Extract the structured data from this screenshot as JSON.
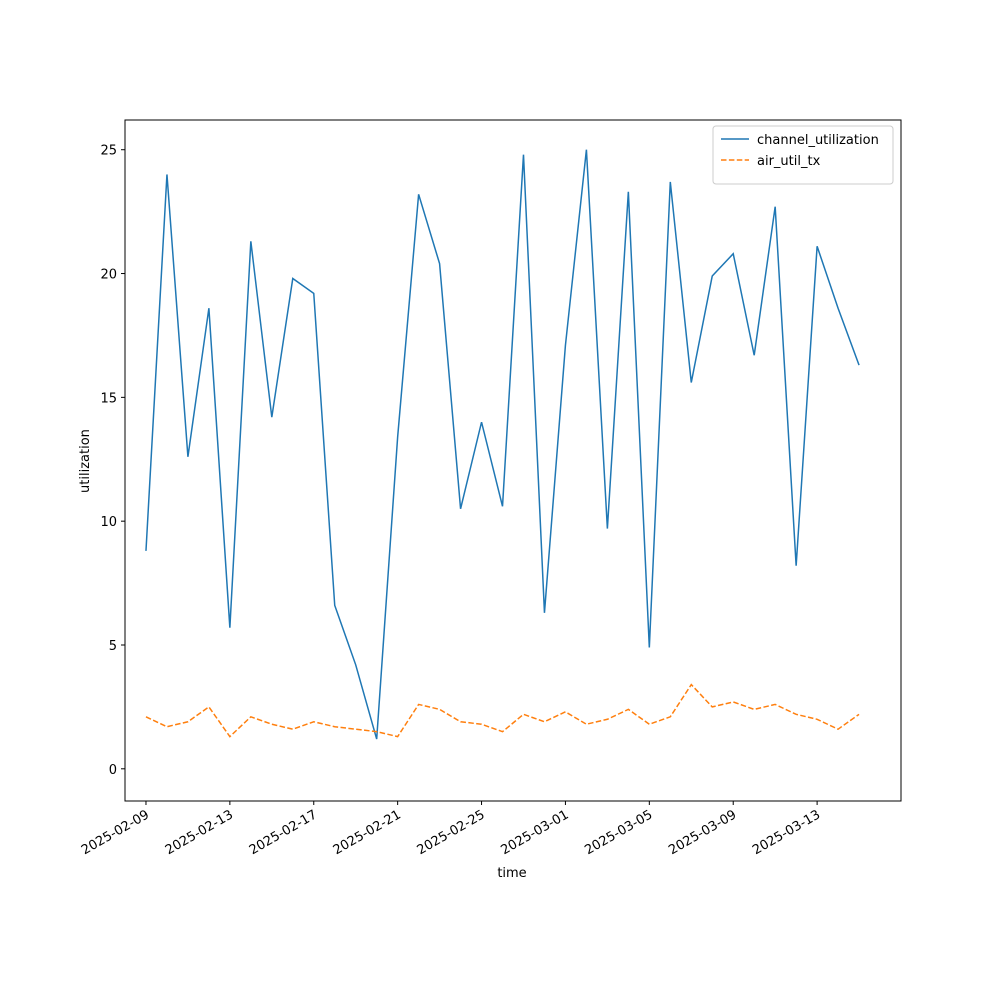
{
  "chart_data": {
    "type": "line",
    "xlabel": "time",
    "ylabel": "utilization",
    "x": [
      "2025-02-09",
      "2025-02-10",
      "2025-02-11",
      "2025-02-12",
      "2025-02-13",
      "2025-02-14",
      "2025-02-15",
      "2025-02-16",
      "2025-02-17",
      "2025-02-18",
      "2025-02-19",
      "2025-02-20",
      "2025-02-21",
      "2025-02-22",
      "2025-02-23",
      "2025-02-24",
      "2025-02-25",
      "2025-02-26",
      "2025-02-27",
      "2025-02-28",
      "2025-03-01",
      "2025-03-02",
      "2025-03-03",
      "2025-03-04",
      "2025-03-05",
      "2025-03-06",
      "2025-03-07",
      "2025-03-08",
      "2025-03-09",
      "2025-03-10",
      "2025-03-11",
      "2025-03-12",
      "2025-03-13",
      "2025-03-14",
      "2025-03-15"
    ],
    "series": [
      {
        "name": "channel_utilization",
        "color": "#1f77b4",
        "dash": false,
        "values": [
          8.8,
          24,
          12.6,
          18.6,
          5.7,
          21.3,
          14.2,
          19.8,
          19.2,
          6.6,
          4.2,
          1.2,
          13.4,
          23.2,
          20.4,
          10.5,
          14,
          10.6,
          24.8,
          6.3,
          17.1,
          25,
          9.7,
          23.3,
          4.9,
          23.7,
          15.6,
          19.9,
          20.8,
          16.7,
          22.7,
          8.2,
          21.1,
          18.6,
          16.3
        ]
      },
      {
        "name": "air_util_tx",
        "color": "#ff7f0e",
        "dash": true,
        "values": [
          2.1,
          1.7,
          1.9,
          2.5,
          1.3,
          2.1,
          1.8,
          1.6,
          1.9,
          1.7,
          1.6,
          1.5,
          1.3,
          2.6,
          2.4,
          1.9,
          1.8,
          1.5,
          2.2,
          1.9,
          2.3,
          1.8,
          2.0,
          2.4,
          1.8,
          2.1,
          3.4,
          2.5,
          2.7,
          2.4,
          2.6,
          2.2,
          2.0,
          1.6,
          2.2
        ]
      }
    ],
    "xlim": [
      "2025-02-08",
      "2025-03-17"
    ],
    "xticks": [
      "2025-02-09",
      "2025-02-13",
      "2025-02-17",
      "2025-02-21",
      "2025-02-25",
      "2025-03-01",
      "2025-03-05",
      "2025-03-09",
      "2025-03-13"
    ],
    "ylim": [
      -1.3,
      26.2
    ],
    "yticks": [
      0,
      5,
      10,
      15,
      20,
      25
    ],
    "grid": false,
    "legend": "upper right"
  }
}
